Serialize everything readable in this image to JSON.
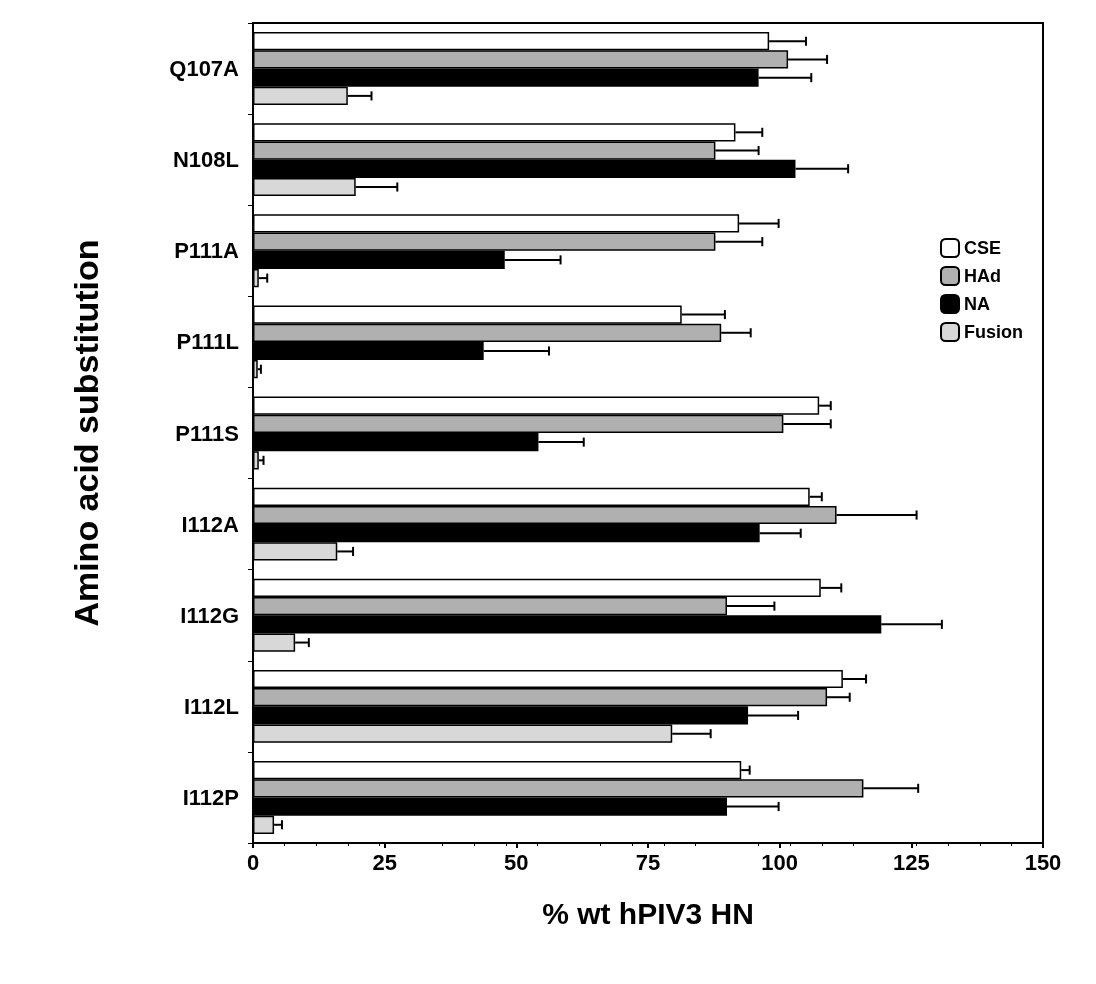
{
  "chart_data": {
    "type": "bar",
    "orientation": "horizontal",
    "xlabel": "% wt hPIV3 HN",
    "ylabel": "Amino acid substitution",
    "categories": [
      "Q107A",
      "N108L",
      "P111A",
      "P111L",
      "P111S",
      "I112A",
      "I112G",
      "I112L",
      "I112P"
    ],
    "series": [
      {
        "name": "CSE",
        "color": "#ffffff",
        "values": [
          98,
          91.6,
          92.3,
          81.4,
          107.5,
          105.7,
          107.8,
          112,
          92.7
        ],
        "errors": [
          [
            98,
            105
          ],
          [
            91.6,
            96.7
          ],
          [
            92.3,
            99.8
          ],
          [
            81.4,
            89.6
          ],
          [
            107.5,
            109.7
          ],
          [
            105.7,
            108
          ],
          [
            107.8,
            111.7
          ],
          [
            112,
            116.4
          ],
          [
            92.7,
            94.3
          ]
        ]
      },
      {
        "name": "HAd",
        "color": "#b0b0b0",
        "values": [
          101.6,
          87.8,
          87.8,
          88.9,
          100.7,
          110.8,
          90,
          109,
          115.9
        ],
        "errors": [
          [
            101.6,
            109
          ],
          [
            87.8,
            96
          ],
          [
            87.8,
            96.7
          ],
          [
            88.9,
            94.5
          ],
          [
            100.7,
            109.7
          ],
          [
            110.8,
            126
          ],
          [
            90,
            99
          ],
          [
            109,
            113.3
          ],
          [
            115.9,
            126.3
          ]
        ]
      },
      {
        "name": "NA",
        "color": "#000000",
        "values": [
          96,
          103,
          47.8,
          43.8,
          54.2,
          96.2,
          119.3,
          94,
          90
        ],
        "errors": [
          [
            96,
            106
          ],
          [
            103,
            113
          ],
          [
            47.8,
            58.4
          ],
          [
            43.8,
            56.2
          ],
          [
            54.2,
            62.8
          ],
          [
            96.2,
            104
          ],
          [
            119.3,
            130.8
          ],
          [
            94,
            103.5
          ],
          [
            90,
            99.8
          ]
        ]
      },
      {
        "name": "Fusion",
        "color": "#d8d8d8",
        "values": [
          18,
          19.5,
          1.1,
          0.9,
          1.1,
          16,
          8,
          79.6,
          4
        ],
        "errors": [
          [
            18,
            22.5
          ],
          [
            19.5,
            27.4
          ],
          [
            1.1,
            2.7
          ],
          [
            0.9,
            1.5
          ],
          [
            1.1,
            2
          ],
          [
            16,
            19
          ],
          [
            8,
            10.6
          ],
          [
            79.6,
            86.9
          ],
          [
            4,
            5.5
          ]
        ]
      }
    ],
    "xlim": [
      0,
      150
    ],
    "xticks": [
      0,
      25,
      50,
      75,
      100,
      125,
      150
    ],
    "legend": "top right",
    "grid": false
  }
}
